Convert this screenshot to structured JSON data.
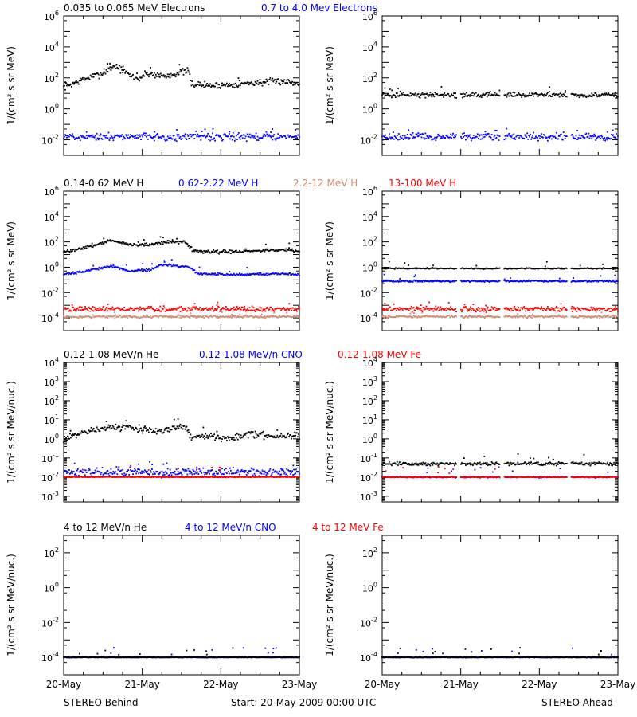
{
  "colors": {
    "black": "#000000",
    "blue": "#0000ff",
    "tan": "#d08c70",
    "red": "#ff0000"
  },
  "footer": {
    "left": "STEREO Behind",
    "center": "Start: 20-May-2009 00:00 UTC",
    "right": "STEREO Ahead"
  },
  "x_axis": {
    "tick_labels": [
      "20-May",
      "21-May",
      "22-May",
      "23-May"
    ],
    "range_days": [
      0,
      3
    ]
  },
  "chart_data": [
    {
      "type": "scatter",
      "title_entries": [
        {
          "text": "0.035 to 0.065 MeV Electrons",
          "color": "black"
        },
        {
          "text": "0.7 to 4.0 Mev Electrons",
          "color": "blue"
        }
      ],
      "ylabel": "1/(cm² s sr MeV)",
      "yscale": "log",
      "ylim": [
        0.001,
        1000000
      ],
      "yticks": [
        {
          "e": -2,
          "label": "10^-2"
        },
        {
          "e": 0,
          "label": "10^0"
        },
        {
          "e": 2,
          "label": "10^2"
        },
        {
          "e": 4,
          "label": "10^4"
        },
        {
          "e": 6,
          "label": "10^6"
        }
      ],
      "panels": [
        {
          "name": "STEREO Behind",
          "series": [
            {
              "color": "black",
              "knots": [
                [
                  0,
                  1.4
                ],
                [
                  0.25,
                  1.9
                ],
                [
                  0.5,
                  2.3
                ],
                [
                  0.65,
                  2.8
                ],
                [
                  0.8,
                  2.3
                ],
                [
                  0.95,
                  1.9
                ],
                [
                  1.05,
                  2.3
                ],
                [
                  1.3,
                  2.1
                ],
                [
                  1.5,
                  2.4
                ],
                [
                  1.6,
                  2.4
                ],
                [
                  1.62,
                  1.6
                ],
                [
                  1.9,
                  1.5
                ],
                [
                  2.2,
                  1.6
                ],
                [
                  2.5,
                  1.7
                ],
                [
                  2.8,
                  1.8
                ],
                [
                  3,
                  1.6
                ]
              ],
              "scatter": 0.13,
              "gaps": []
            },
            {
              "color": "blue",
              "knots": [
                [
                  0,
                  -1.8
                ],
                [
                  3,
                  -1.8
                ]
              ],
              "scatter": 0.15,
              "gaps": []
            }
          ]
        },
        {
          "name": "STEREO Ahead",
          "series": [
            {
              "color": "black",
              "knots": [
                [
                  0,
                  0.9
                ],
                [
                  3,
                  0.9
                ]
              ],
              "scatter": 0.1,
              "gaps": [
                [
                  0.95,
                  1.0
                ],
                [
                  1.5,
                  1.55
                ],
                [
                  2.35,
                  2.4
                ]
              ]
            },
            {
              "color": "blue",
              "knots": [
                [
                  0,
                  -1.8
                ],
                [
                  3,
                  -1.8
                ]
              ],
              "scatter": 0.14,
              "gaps": [
                [
                  0.95,
                  1.0
                ],
                [
                  1.5,
                  1.55
                ],
                [
                  2.35,
                  2.4
                ]
              ]
            }
          ]
        }
      ]
    },
    {
      "type": "scatter",
      "title_entries": [
        {
          "text": "0.14-0.62 MeV H",
          "color": "black"
        },
        {
          "text": "0.62-2.22 MeV H",
          "color": "blue"
        },
        {
          "text": "2.2-12 MeV H",
          "color": "tan"
        },
        {
          "text": "13-100 MeV H",
          "color": "red"
        }
      ],
      "ylabel": "1/(cm² s sr MeV)",
      "yscale": "log",
      "ylim": [
        1e-05,
        1000000
      ],
      "yticks": [
        {
          "e": -4,
          "label": "10^-4"
        },
        {
          "e": -2,
          "label": "10^-2"
        },
        {
          "e": 0,
          "label": "10^0"
        },
        {
          "e": 2,
          "label": "10^2"
        },
        {
          "e": 4,
          "label": "10^4"
        },
        {
          "e": 6,
          "label": "10^6"
        }
      ],
      "panels": [
        {
          "name": "STEREO Behind",
          "series": [
            {
              "color": "black",
              "knots": [
                [
                  0,
                  1.2
                ],
                [
                  0.3,
                  1.6
                ],
                [
                  0.6,
                  2.1
                ],
                [
                  0.85,
                  1.8
                ],
                [
                  1.1,
                  1.8
                ],
                [
                  1.3,
                  2.0
                ],
                [
                  1.55,
                  2.0
                ],
                [
                  1.65,
                  1.3
                ],
                [
                  2,
                  1.2
                ],
                [
                  2.5,
                  1.3
                ],
                [
                  2.9,
                  1.4
                ],
                [
                  3,
                  1.2
                ]
              ],
              "scatter": 0.08,
              "gaps": []
            },
            {
              "color": "blue",
              "knots": [
                [
                  0,
                  -0.6
                ],
                [
                  0.3,
                  -0.3
                ],
                [
                  0.6,
                  0.1
                ],
                [
                  0.85,
                  -0.3
                ],
                [
                  1.1,
                  -0.2
                ],
                [
                  1.25,
                  0.2
                ],
                [
                  1.6,
                  0.0
                ],
                [
                  1.7,
                  -0.5
                ],
                [
                  2.2,
                  -0.6
                ],
                [
                  2.8,
                  -0.5
                ],
                [
                  3,
                  -0.6
                ]
              ],
              "scatter": 0.06,
              "gaps": []
            },
            {
              "color": "tan",
              "knots": [
                [
                  0,
                  -3.9
                ],
                [
                  3,
                  -3.9
                ]
              ],
              "scatter": 0.06,
              "gaps": []
            },
            {
              "color": "red",
              "knots": [
                [
                  0,
                  -3.3
                ],
                [
                  3,
                  -3.3
                ]
              ],
              "scatter": 0.12,
              "gaps": []
            }
          ]
        },
        {
          "name": "STEREO Ahead",
          "series": [
            {
              "color": "black",
              "knots": [
                [
                  0,
                  -0.1
                ],
                [
                  3,
                  -0.1
                ]
              ],
              "scatter": 0.03,
              "gaps": [
                [
                  0.95,
                  1.0
                ],
                [
                  1.5,
                  1.55
                ],
                [
                  2.35,
                  2.4
                ]
              ]
            },
            {
              "color": "blue",
              "knots": [
                [
                  0,
                  -1.1
                ],
                [
                  3,
                  -1.1
                ]
              ],
              "scatter": 0.04,
              "gaps": [
                [
                  0.95,
                  1.0
                ],
                [
                  1.5,
                  1.55
                ],
                [
                  2.35,
                  2.4
                ]
              ]
            },
            {
              "color": "tan",
              "knots": [
                [
                  0,
                  -3.9
                ],
                [
                  3,
                  -3.9
                ]
              ],
              "scatter": 0.06,
              "gaps": [
                [
                  0.95,
                  1.0
                ],
                [
                  1.5,
                  1.55
                ],
                [
                  2.35,
                  2.4
                ]
              ]
            },
            {
              "color": "red",
              "knots": [
                [
                  0,
                  -3.3
                ],
                [
                  3,
                  -3.3
                ]
              ],
              "scatter": 0.12,
              "gaps": [
                [
                  0.95,
                  1.0
                ],
                [
                  1.5,
                  1.55
                ],
                [
                  2.35,
                  2.4
                ]
              ]
            }
          ]
        }
      ]
    },
    {
      "type": "scatter",
      "title_entries": [
        {
          "text": "0.12-1.08 MeV/n He",
          "color": "black"
        },
        {
          "text": "0.12-1.08 MeV/n CNO",
          "color": "blue"
        },
        {
          "text": "0.12-1.08 MeV Fe",
          "color": "red"
        }
      ],
      "ylabel": "1/(cm² s sr MeV/nuc.)",
      "yscale": "log",
      "ylim": [
        0.0005,
        10000
      ],
      "yticks": [
        {
          "e": -3,
          "label": "10^-3"
        },
        {
          "e": -2,
          "label": "10^-2"
        },
        {
          "e": -1,
          "label": "10^-1"
        },
        {
          "e": 0,
          "label": "10^0"
        },
        {
          "e": 1,
          "label": "10^1"
        },
        {
          "e": 2,
          "label": "10^2"
        },
        {
          "e": 3,
          "label": "10^3"
        },
        {
          "e": 4,
          "label": "10^4"
        }
      ],
      "panels": [
        {
          "name": "STEREO Behind",
          "series": [
            {
              "color": "black",
              "knots": [
                [
                  0,
                  0.0
                ],
                [
                  0.2,
                  0.3
                ],
                [
                  0.5,
                  0.55
                ],
                [
                  0.75,
                  0.6
                ],
                [
                  1.0,
                  0.5
                ],
                [
                  1.2,
                  0.4
                ],
                [
                  1.45,
                  0.65
                ],
                [
                  1.55,
                  0.6
                ],
                [
                  1.62,
                  0.05
                ],
                [
                  1.8,
                  0.15
                ],
                [
                  2.1,
                  0.05
                ],
                [
                  2.4,
                  0.25
                ],
                [
                  2.7,
                  0.15
                ],
                [
                  3,
                  0.2
                ]
              ],
              "scatter": 0.1,
              "gaps": []
            },
            {
              "color": "blue",
              "knots": [
                [
                  0,
                  -1.75
                ],
                [
                  3,
                  -1.75
                ]
              ],
              "scatter": 0.14,
              "gaps": []
            },
            {
              "color": "red",
              "knots": [
                [
                  0,
                  -2.0
                ],
                [
                  3,
                  -2.0
                ]
              ],
              "scatter": 0.01,
              "gaps": []
            }
          ]
        },
        {
          "name": "STEREO Ahead",
          "series": [
            {
              "color": "black",
              "knots": [
                [
                  0,
                  -1.3
                ],
                [
                  3,
                  -1.3
                ]
              ],
              "scatter": 0.06,
              "gaps": [
                [
                  0.95,
                  1.0
                ],
                [
                  1.5,
                  1.55
                ],
                [
                  2.35,
                  2.4
                ]
              ]
            },
            {
              "color": "blue",
              "knots": [
                [
                  0,
                  -2.0
                ],
                [
                  3,
                  -2.0
                ]
              ],
              "scatter": 0.02,
              "gaps": [
                [
                  0.95,
                  1.0
                ],
                [
                  1.5,
                  1.55
                ],
                [
                  2.35,
                  2.4
                ]
              ]
            },
            {
              "color": "red",
              "knots": [
                [
                  0,
                  -2.0
                ],
                [
                  3,
                  -2.0
                ]
              ],
              "scatter": 0.01,
              "gaps": [
                [
                  0.95,
                  1.0
                ],
                [
                  1.5,
                  1.55
                ],
                [
                  2.35,
                  2.4
                ]
              ]
            }
          ]
        }
      ]
    },
    {
      "type": "scatter",
      "title_entries": [
        {
          "text": "4 to 12 MeV/n He",
          "color": "black"
        },
        {
          "text": "4 to 12 MeV/n CNO",
          "color": "blue"
        },
        {
          "text": "4 to 12 MeV Fe",
          "color": "red"
        }
      ],
      "ylabel": "1/(cm² s sr MeV/nuc.)",
      "yscale": "log",
      "ylim": [
        1e-05,
        1000
      ],
      "yticks": [
        {
          "e": -4,
          "label": "10^-4"
        },
        {
          "e": -2,
          "label": "10^-2"
        },
        {
          "e": 0,
          "label": "10^0"
        },
        {
          "e": 2,
          "label": "10^2"
        }
      ],
      "panels": [
        {
          "name": "STEREO Behind",
          "series": [
            {
              "color": "blue",
              "knots": [
                [
                  0,
                  -4.0
                ],
                [
                  3,
                  -4.0
                ]
              ],
              "scatter": 0.01,
              "gaps": []
            },
            {
              "color": "black",
              "knots": [
                [
                  0,
                  -4.0
                ],
                [
                  3,
                  -4.0
                ]
              ],
              "scatter": 0.01,
              "gaps": []
            }
          ]
        },
        {
          "name": "STEREO Ahead",
          "series": [
            {
              "color": "blue",
              "knots": [
                [
                  0,
                  -4.0
                ],
                [
                  3,
                  -4.0
                ]
              ],
              "scatter": 0.01,
              "gaps": []
            },
            {
              "color": "black",
              "knots": [
                [
                  0,
                  -4.0
                ],
                [
                  3,
                  -4.0
                ]
              ],
              "scatter": 0.01,
              "gaps": []
            }
          ]
        }
      ]
    }
  ]
}
